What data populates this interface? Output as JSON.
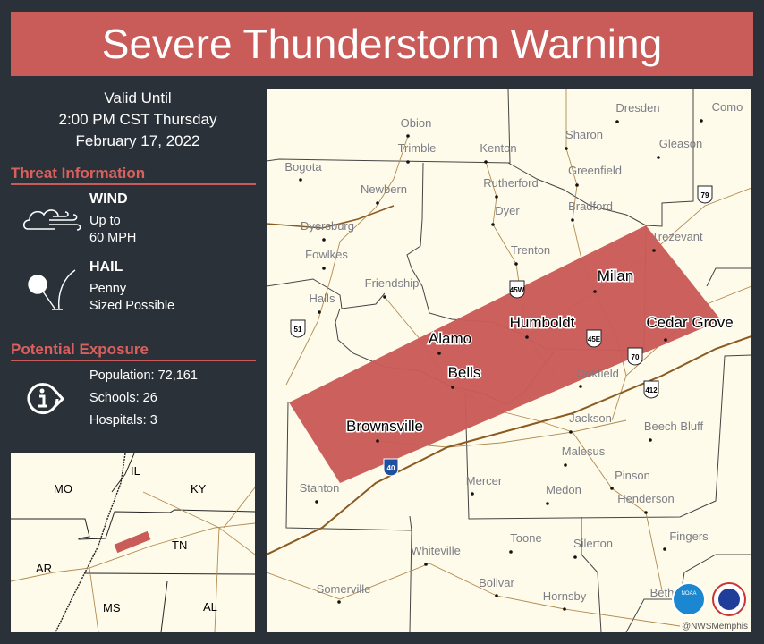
{
  "title": "Severe Thunderstorm Warning",
  "valid": {
    "line1": "Valid Until",
    "line2": "2:00 PM CST Thursday",
    "line3": "February 17, 2022"
  },
  "threat": {
    "heading": "Threat Information",
    "wind": {
      "label": "WIND",
      "line1": "Up to",
      "line2": "60  MPH",
      "icon": "wind-cloud-icon"
    },
    "hail": {
      "label": "HAIL",
      "line1": "Penny",
      "line2": "Sized Possible",
      "icon": "hailstone-icon"
    }
  },
  "exposure": {
    "heading": "Potential Exposure",
    "population": "Population: 72,161",
    "schools": "Schools: 26",
    "hospitals": "Hospitals: 3",
    "icon": "info-icon"
  },
  "colors": {
    "warning": "#c95b58",
    "background": "#2a3138",
    "map_land": "#fffbea"
  },
  "map": {
    "towns": [
      "Obion",
      "Trimble",
      "Kenton",
      "Bogota",
      "Newbern",
      "Rutherford",
      "Dyer",
      "Dyersburg",
      "Fowlkes",
      "Trenton",
      "Friendship",
      "Halls",
      "Dresden",
      "Como",
      "Sharon",
      "Gleason",
      "Greenfield",
      "Bradford",
      "Trezevant",
      "Oakfield",
      "Jackson",
      "Beech Bluff",
      "Malesus",
      "Pinson",
      "Mercer",
      "Medon",
      "Henderson",
      "Stanton",
      "Toone",
      "Silerton",
      "Fingers",
      "Whiteville",
      "Bolivar",
      "Somerville",
      "Hornsby",
      "Beth"
    ],
    "warned_towns": [
      "Milan",
      "Humboldt",
      "Cedar Grove",
      "Alamo",
      "Bells",
      "Brownsville"
    ],
    "shields": [
      "45W",
      "45E",
      "70",
      "412",
      "79",
      "51",
      "40"
    ],
    "credit": "@NWSMemphis",
    "logos": [
      "NOAA",
      "National Weather Service"
    ]
  },
  "inset": {
    "states": [
      "MO",
      "IL",
      "KY",
      "TN",
      "AR",
      "MS",
      "AL"
    ]
  }
}
